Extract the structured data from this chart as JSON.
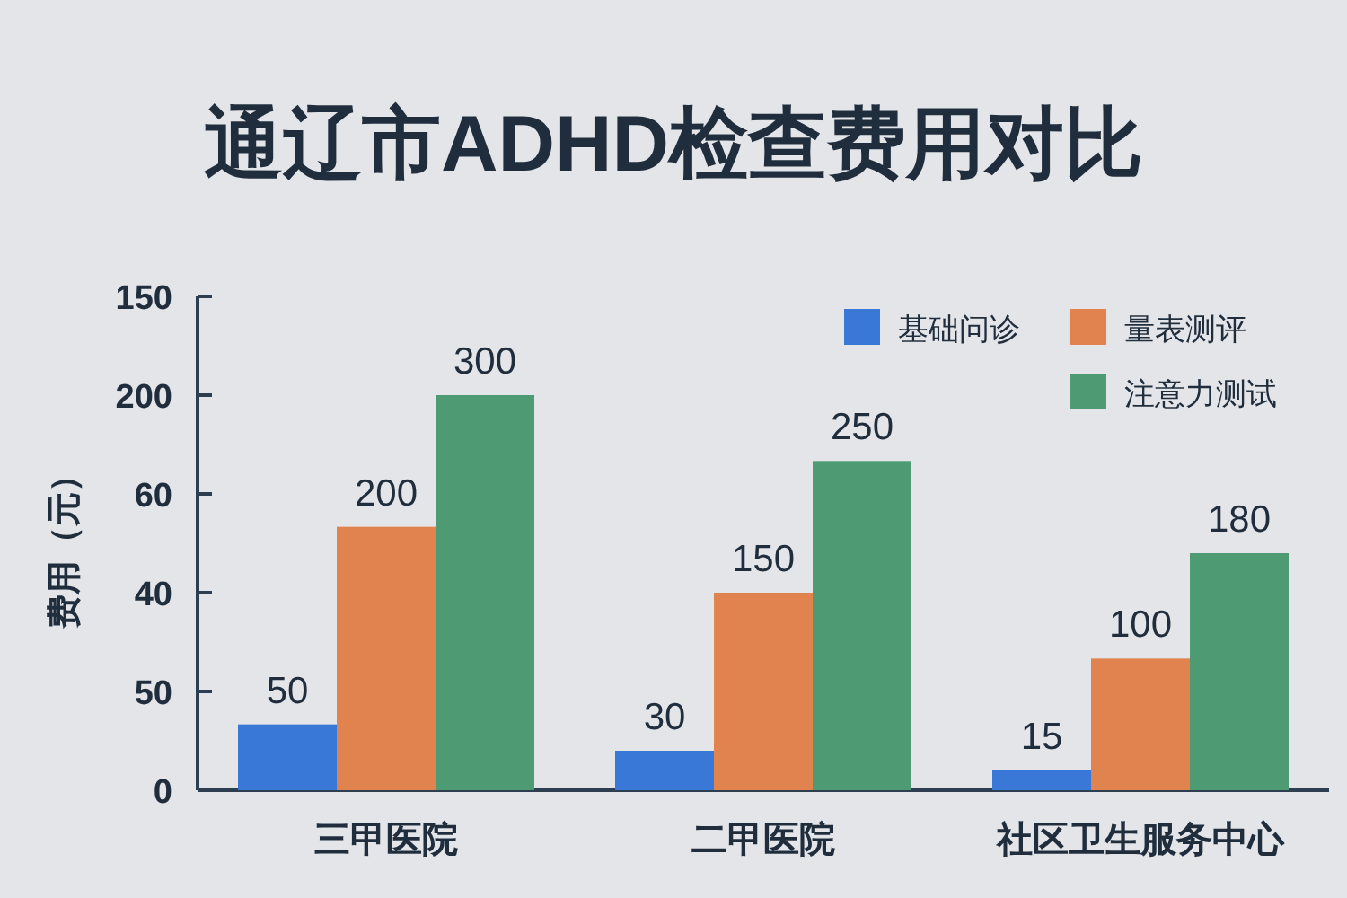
{
  "chart_data": {
    "type": "bar",
    "title": "通辽市ADHD检查费用对比",
    "ylabel": "费用（元）",
    "categories": [
      "三甲医院",
      "二甲医院",
      "社区卫生服务中心"
    ],
    "series": [
      {
        "name": "基础问诊",
        "color": "#3a78d8",
        "values": [
          50,
          30,
          15
        ]
      },
      {
        "name": "量表测评",
        "color": "#e0834f",
        "values": [
          200,
          150,
          100
        ]
      },
      {
        "name": "注意力测试",
        "color": "#4e9a72",
        "values": [
          300,
          250,
          180
        ]
      }
    ],
    "ylim": [
      0,
      375
    ],
    "annotations": [
      "0",
      "50",
      "40",
      "60",
      "200",
      "150"
    ],
    "data_labels": true,
    "legend": "top right"
  }
}
